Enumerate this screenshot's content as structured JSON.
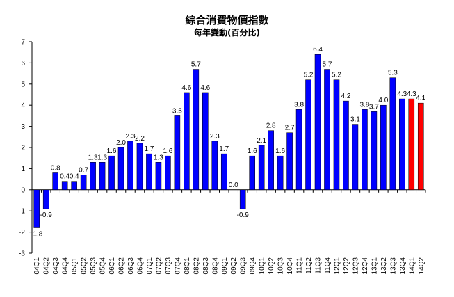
{
  "chart_data": {
    "type": "bar",
    "title": "綜合消費物價指數",
    "subtitle": "每年變動(百分比)",
    "xlabel": "",
    "ylabel": "",
    "ylim": [
      -3,
      7
    ],
    "yticks": [
      -3,
      -2,
      -1,
      0,
      1,
      2,
      3,
      4,
      5,
      6,
      7
    ],
    "grid": false,
    "legend": "none",
    "colors": {
      "primary": "#0000ff",
      "highlight": "#ff0000",
      "outline": "#000000"
    },
    "categories": [
      "04Q1",
      "04Q2",
      "04Q3",
      "04Q4",
      "05Q1",
      "05Q2",
      "05Q3",
      "05Q4",
      "06Q1",
      "06Q2",
      "06Q3",
      "06Q4",
      "07Q1",
      "07Q2",
      "07Q3",
      "07Q4",
      "08Q1",
      "08Q2",
      "08Q3",
      "08Q4",
      "09Q1",
      "09Q2",
      "09Q3",
      "09Q4",
      "10Q1",
      "10Q2",
      "10Q3",
      "10Q4",
      "11Q1",
      "11Q2",
      "11Q3",
      "11Q4",
      "12Q1",
      "12Q2",
      "12Q3",
      "12Q4",
      "13Q1",
      "13Q2",
      "13Q3",
      "13Q4",
      "14Q1",
      "14Q2"
    ],
    "values": [
      -1.8,
      -0.9,
      0.8,
      0.4,
      0.4,
      0.7,
      1.3,
      1.3,
      1.6,
      2.0,
      2.3,
      2.2,
      1.7,
      1.3,
      1.6,
      3.5,
      4.6,
      5.7,
      4.6,
      2.3,
      1.7,
      0.0,
      -0.9,
      1.6,
      2.1,
      2.8,
      1.6,
      2.7,
      3.8,
      5.2,
      6.4,
      5.7,
      5.2,
      4.2,
      3.1,
      3.8,
      3.7,
      4.0,
      5.3,
      4.3,
      4.3,
      4.1
    ],
    "highlighted": [
      "14Q1",
      "14Q2"
    ]
  }
}
